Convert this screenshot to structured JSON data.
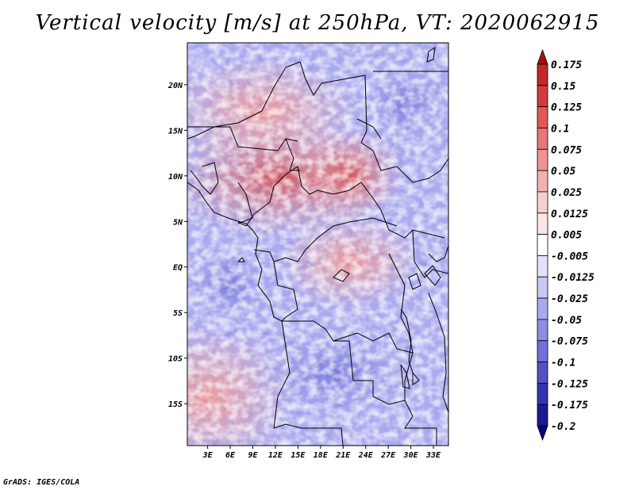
{
  "title": "Vertical velocity [m/s] at 250hPa, VT: 2020062915",
  "credit": "GrADS: IGES/COLA",
  "map": {
    "lon_labels": [
      "3E",
      "6E",
      "9E",
      "12E",
      "15E",
      "18E",
      "21E",
      "24E",
      "27E",
      "30E",
      "33E"
    ],
    "lon_values": [
      3,
      6,
      9,
      12,
      15,
      18,
      21,
      24,
      27,
      30,
      33
    ],
    "lat_labels": [
      "20N",
      "15N",
      "10N",
      "5N",
      "EQ",
      "5S",
      "10S",
      "15S"
    ],
    "lat_values": [
      20,
      15,
      10,
      5,
      0,
      -5,
      -10,
      -15
    ],
    "lon_range": [
      0.3,
      35
    ],
    "lat_range": [
      -19.6,
      24.6
    ]
  },
  "colorbar": {
    "labels": [
      "0.175",
      "0.15",
      "0.125",
      "0.1",
      "0.075",
      "0.05",
      "0.025",
      "0.0125",
      "0.005",
      "-0.005",
      "-0.0125",
      "-0.025",
      "-0.05",
      "-0.075",
      "-0.1",
      "-0.125",
      "-0.175",
      "-0.2"
    ],
    "colors": [
      "#a50f15",
      "#c0282a",
      "#d03c3c",
      "#de5a5a",
      "#e67777",
      "#ee9494",
      "#f4b1b1",
      "#f8cfcf",
      "#fbe6e6",
      "#ffffff",
      "#e2e2fb",
      "#c8c8f5",
      "#a9a9ee",
      "#8d8de5",
      "#7070d8",
      "#5252c6",
      "#3535b0",
      "#1b1b92",
      "#05057a"
    ]
  },
  "colors": {
    "pos_max": "#a50f15",
    "neg_max": "#05057a",
    "neutral": "#ffffff"
  }
}
